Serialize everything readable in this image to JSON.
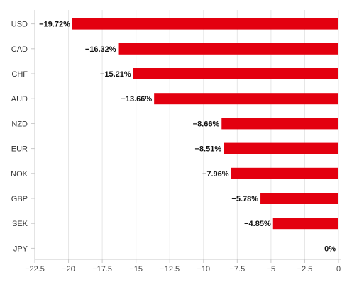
{
  "colors": {
    "bar": "#e3000f",
    "grid": "#e6e6e6",
    "axis": "#c8c8c8"
  },
  "chart_data": {
    "type": "bar",
    "orientation": "horizontal",
    "categories": [
      "USD",
      "CAD",
      "CHF",
      "AUD",
      "NZD",
      "EUR",
      "NOK",
      "GBP",
      "SEK",
      "JPY"
    ],
    "values": [
      -19.72,
      -16.32,
      -15.21,
      -13.66,
      -8.66,
      -8.51,
      -7.96,
      -5.78,
      -4.85,
      0
    ],
    "data_labels": [
      "−19.72%",
      "−16.32%",
      "−15.21%",
      "−13.66%",
      "−8.66%",
      "−8.51%",
      "−7.96%",
      "−5.78%",
      "−4.85%",
      "0%"
    ],
    "title": "",
    "xlabel": "",
    "ylabel": "",
    "xlim": [
      -22.5,
      0
    ],
    "xticks": [
      -22.5,
      -20,
      -17.5,
      -15,
      -12.5,
      -10,
      -7.5,
      -5,
      -2.5,
      0
    ],
    "xtick_labels": [
      "−22.5",
      "−20",
      "−17.5",
      "−15",
      "−12.5",
      "−10",
      "−7.5",
      "−5",
      "−2.5",
      "0"
    ],
    "grid": "vertical",
    "legend": "none"
  }
}
